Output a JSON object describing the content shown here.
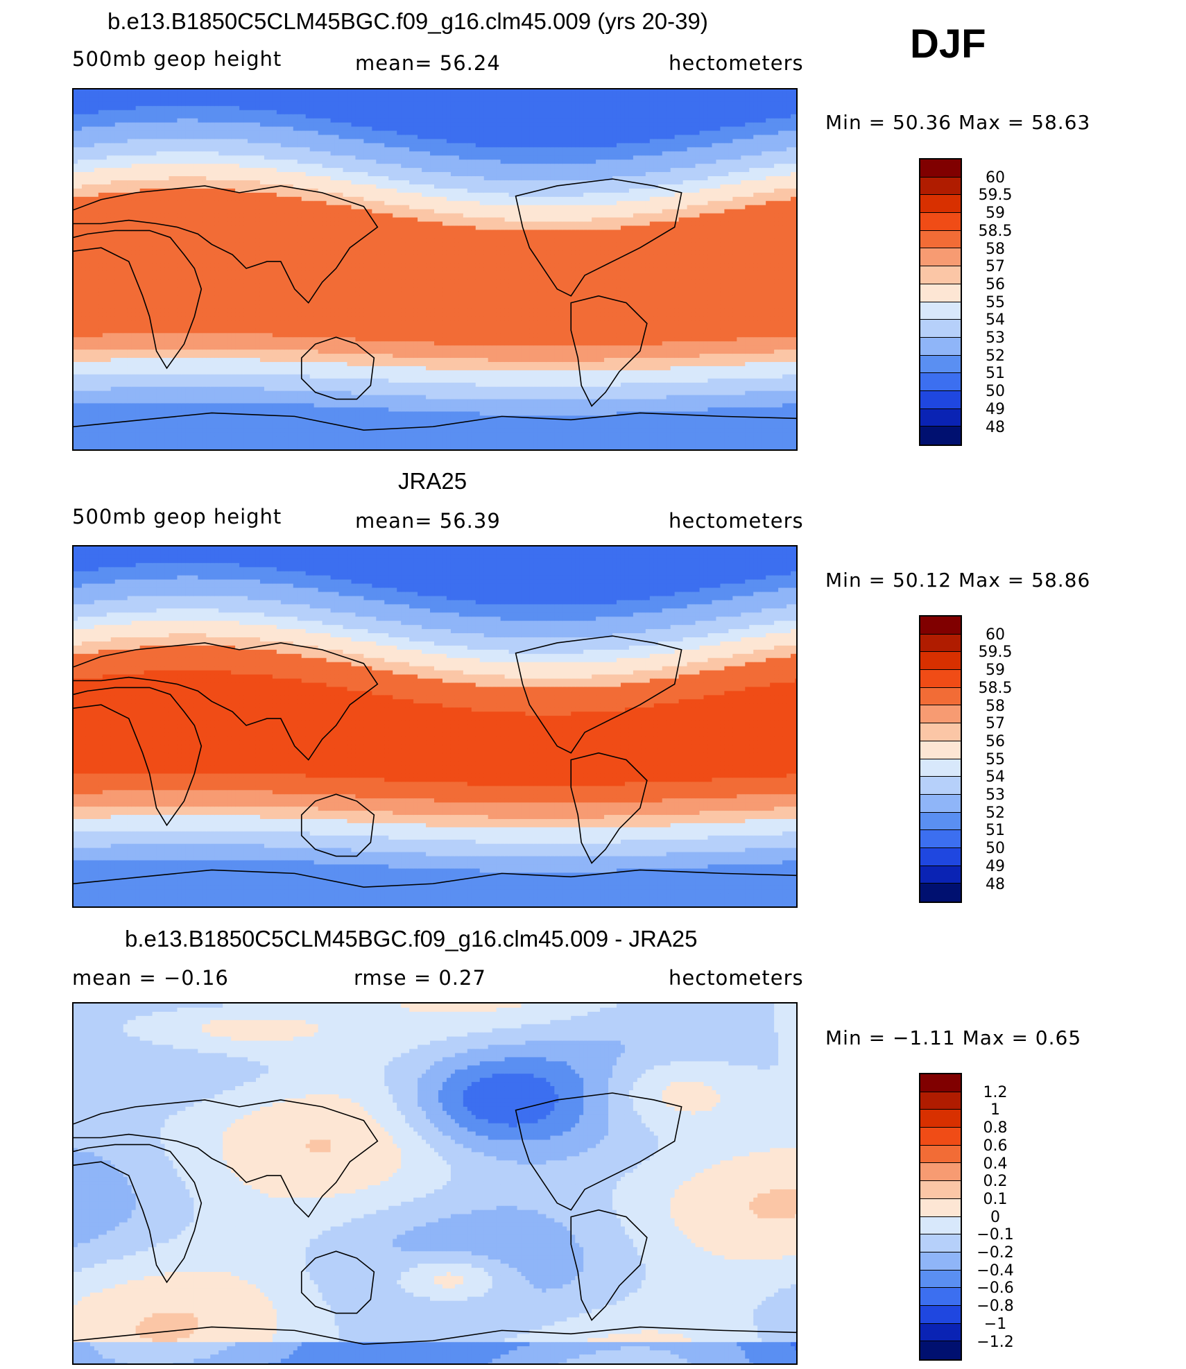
{
  "season": "DJF",
  "panels": [
    {
      "title": "b.e13.B1850C5CLM45BGC.f09_g16.clm45.009 (yrs 20-39)",
      "left": "500mb  geop  height",
      "center": "mean=   56.24",
      "right": "hectometers",
      "minmax": "Min  =    50.36  Max  =    58.63",
      "type": "model"
    },
    {
      "title": "JRA25",
      "left": "500mb  geop  height",
      "center": "mean=   56.39",
      "right": "hectometers",
      "minmax": "Min  =    50.12  Max  =    58.86",
      "type": "obs"
    },
    {
      "title": "b.e13.B1850C5CLM45BGC.f09_g16.clm45.009 - JRA25",
      "left": "mean  =    −0.16",
      "center": "rmse  =     0.27",
      "right": "hectometers",
      "minmax": "Min  =    −1.11  Max  =      0.65",
      "type": "diff"
    }
  ],
  "colorbars": {
    "absolute": {
      "labels": [
        "60",
        "59.5",
        "59",
        "58.5",
        "58",
        "57",
        "56",
        "55",
        "54",
        "53",
        "52",
        "51",
        "50",
        "49",
        "48"
      ],
      "colors": [
        "#800000",
        "#b01c00",
        "#d83000",
        "#f04c16",
        "#f26c36",
        "#f79b72",
        "#fbc6a6",
        "#fde6d4",
        "#d8e8fb",
        "#b6d0fa",
        "#8fb5f8",
        "#5a8ff2",
        "#3c6ff0",
        "#1f47e0",
        "#0a23b4",
        "#001070"
      ]
    },
    "difference": {
      "labels": [
        "1.2",
        "1",
        "0.8",
        "0.6",
        "0.4",
        "0.2",
        "0.1",
        "0",
        "−0.1",
        "−0.2",
        "−0.4",
        "−0.6",
        "−0.8",
        "−1",
        "−1.2"
      ],
      "colors": [
        "#800000",
        "#b01c00",
        "#d83000",
        "#f04c16",
        "#f26c36",
        "#f79b72",
        "#fbc6a6",
        "#fde6d4",
        "#d8e8fb",
        "#b6d0fa",
        "#8fb5f8",
        "#5a8ff2",
        "#3c6ff0",
        "#1f47e0",
        "#0a23b4",
        "#001070"
      ]
    }
  }
}
